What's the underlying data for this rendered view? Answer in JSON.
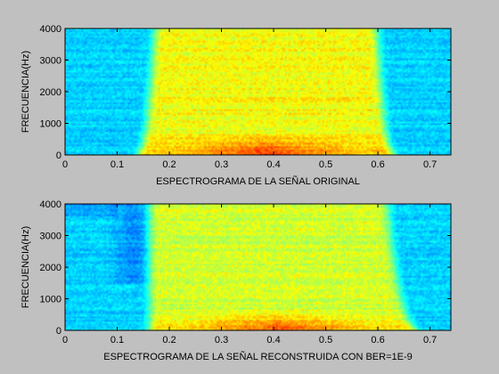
{
  "figure": {
    "background": "#c0c0c0"
  },
  "chart_data": [
    {
      "type": "heatmap",
      "subtype": "spectrogram",
      "title": "",
      "xlabel": "ESPECTROGRAMA DE LA SEÑAL ORIGINAL",
      "ylabel": "FRECUENCIA(Hz)",
      "xlim": [
        0,
        0.74
      ],
      "ylim": [
        0,
        4000
      ],
      "xticks": [
        0,
        0.1,
        0.2,
        0.3,
        0.4,
        0.5,
        0.6,
        0.7
      ],
      "xtick_labels": [
        "0",
        "0.1",
        "0.2",
        "0.3",
        "0.4",
        "0.5",
        "0.6",
        "0.7"
      ],
      "yticks": [
        0,
        1000,
        2000,
        3000,
        4000
      ],
      "ytick_labels": [
        "0",
        "1000",
        "2000",
        "3000",
        "4000"
      ],
      "colormap": "jet",
      "grid": false,
      "active_interval_s": [
        0.13,
        0.64
      ],
      "active_interval_top_s": [
        0.17,
        0.6
      ],
      "peak_energy_band_hz": [
        0,
        700
      ]
    },
    {
      "type": "heatmap",
      "subtype": "spectrogram",
      "title": "",
      "xlabel": "ESPECTROGRAMA DE LA SEÑAL RECONSTRUIDA CON BER=1E-9",
      "ylabel": "FRECUENCIA(Hz)",
      "xlim": [
        0,
        0.74
      ],
      "ylim": [
        0,
        4000
      ],
      "xticks": [
        0,
        0.1,
        0.2,
        0.3,
        0.4,
        0.5,
        0.6,
        0.7
      ],
      "xtick_labels": [
        "0",
        "0.1",
        "0.2",
        "0.3",
        "0.4",
        "0.5",
        "0.6",
        "0.7"
      ],
      "yticks": [
        0,
        1000,
        2000,
        3000,
        4000
      ],
      "ytick_labels": [
        "0",
        "1000",
        "2000",
        "3000",
        "4000"
      ],
      "colormap": "jet",
      "grid": false,
      "active_interval_s": [
        0.16,
        0.69
      ],
      "active_interval_top_s": [
        0.16,
        0.62
      ],
      "peak_energy_band_hz": [
        0,
        700
      ]
    }
  ]
}
